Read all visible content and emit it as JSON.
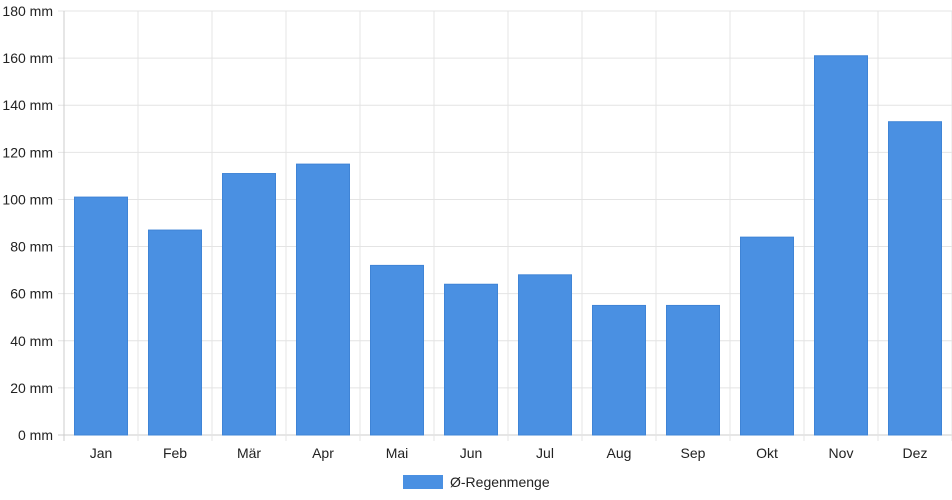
{
  "chart_data": {
    "type": "bar",
    "categories": [
      "Jan",
      "Feb",
      "Mär",
      "Apr",
      "Mai",
      "Jun",
      "Jul",
      "Aug",
      "Sep",
      "Okt",
      "Nov",
      "Dez"
    ],
    "series": [
      {
        "name": "Ø-Regenmenge",
        "color": "#4a90e2",
        "values": [
          101,
          87,
          111,
          115,
          72,
          64,
          68,
          55,
          55,
          84,
          161,
          133
        ]
      }
    ],
    "y_unit_suffix": " mm",
    "y_ticks": [
      "0 mm",
      "20 mm",
      "40 mm",
      "60 mm",
      "80 mm",
      "100 mm",
      "120 mm",
      "140 mm",
      "160 mm",
      "180 mm"
    ],
    "ylim": [
      0,
      180
    ],
    "grid": true,
    "legend_position": "bottom",
    "title": "",
    "xlabel": "",
    "ylabel": ""
  }
}
